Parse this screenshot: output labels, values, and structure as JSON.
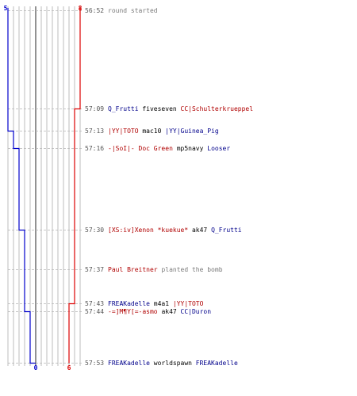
{
  "scoreboard": {
    "blue_color": "#0000cc",
    "red_color": "#dd0000",
    "start_blue": "5",
    "start_red": "8",
    "end_blue": "0",
    "end_red": "6"
  },
  "events": [
    {
      "time": "56:52",
      "parts": [
        {
          "text": "round started",
          "cls": "t-gray"
        }
      ]
    },
    {
      "time": "57:09",
      "parts": [
        {
          "text": "Q_Frutti",
          "cls": "t-blue"
        },
        {
          "text": " fiveseven ",
          "cls": "t-black"
        },
        {
          "text": "CC|Schulterkrueppel",
          "cls": "t-red"
        }
      ]
    },
    {
      "time": "57:13",
      "parts": [
        {
          "text": "|YY|TOTO",
          "cls": "t-red"
        },
        {
          "text": " mac10 ",
          "cls": "t-black"
        },
        {
          "text": "|YY|Guinea_Pig",
          "cls": "t-blue"
        }
      ]
    },
    {
      "time": "57:16",
      "parts": [
        {
          "text": "-|SoI|- Doc Green",
          "cls": "t-red"
        },
        {
          "text": " mp5navy ",
          "cls": "t-black"
        },
        {
          "text": "Looser",
          "cls": "t-blue"
        }
      ]
    },
    {
      "time": "57:30",
      "parts": [
        {
          "text": "[XS:iv]Xenon *kuekue*",
          "cls": "t-red"
        },
        {
          "text": " ak47 ",
          "cls": "t-black"
        },
        {
          "text": "Q_Frutti",
          "cls": "t-blue"
        }
      ]
    },
    {
      "time": "57:37",
      "parts": [
        {
          "text": "Paul Breitner",
          "cls": "t-red"
        },
        {
          "text": " planted the bomb",
          "cls": "t-gray"
        }
      ]
    },
    {
      "time": "57:43",
      "parts": [
        {
          "text": "FREAKadelle",
          "cls": "t-blue"
        },
        {
          "text": " m4a1 ",
          "cls": "t-black"
        },
        {
          "text": "|YY|TOTO",
          "cls": "t-red"
        }
      ]
    },
    {
      "time": "57:44",
      "parts": [
        {
          "text": "-=]M¶Y[=-asmo",
          "cls": "t-red"
        },
        {
          "text": " ak47 ",
          "cls": "t-black"
        },
        {
          "text": "CC|Duron",
          "cls": "t-blue"
        }
      ]
    },
    {
      "time": "57:53",
      "parts": [
        {
          "text": "FREAKadelle",
          "cls": "t-blue"
        },
        {
          "text": " worldspawn ",
          "cls": "t-black"
        },
        {
          "text": "FREAKadelle",
          "cls": "t-blue"
        }
      ]
    }
  ],
  "alive_steps": {
    "blue": [
      5,
      5,
      5,
      4,
      3,
      2,
      2,
      2,
      1,
      0
    ],
    "red": [
      8,
      8,
      7,
      7,
      7,
      7,
      7,
      6,
      6,
      6
    ]
  }
}
